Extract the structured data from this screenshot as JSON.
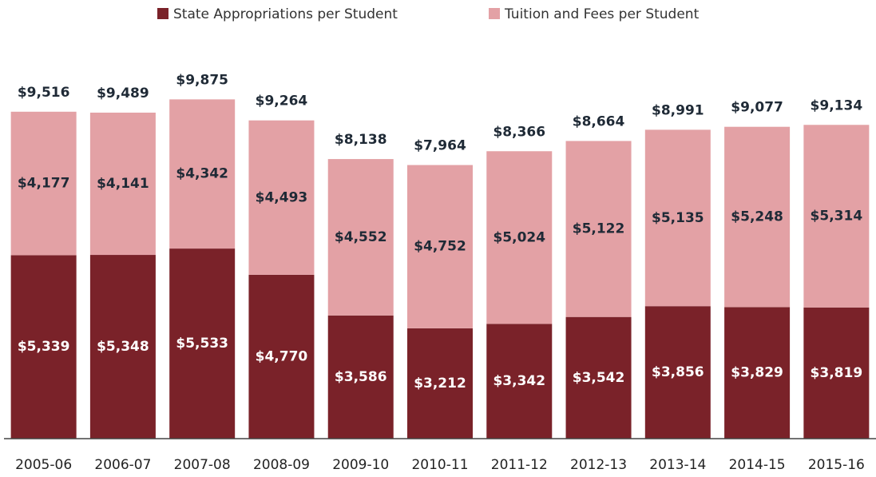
{
  "chart_data": {
    "type": "stacked_bar",
    "categories": [
      "2005-06",
      "2006-07",
      "2007-08",
      "2008-09",
      "2009-10",
      "2010-11",
      "2011-12",
      "2012-13",
      "2013-14",
      "2014-15",
      "2015-16"
    ],
    "series": [
      {
        "name": "State Appropriations per Student",
        "color": "#7a2229",
        "values": [
          5339,
          5348,
          5533,
          4770,
          3586,
          3212,
          3342,
          3542,
          3856,
          3829,
          3819
        ],
        "value_labels": [
          "$5,339",
          "$5,348",
          "$5,533",
          "$4,770",
          "$3,586",
          "$3,212",
          "$3,342",
          "$3,542",
          "$3,856",
          "$3,829",
          "$3,819"
        ]
      },
      {
        "name": "Tuition and Fees per Student",
        "color": "#e3a1a5",
        "values": [
          4177,
          4141,
          4342,
          4493,
          4552,
          4752,
          5024,
          5122,
          5135,
          5248,
          5314
        ],
        "value_labels": [
          "$4,177",
          "$4,141",
          "$4,342",
          "$4,493",
          "$4,552",
          "$4,752",
          "$5,024",
          "$5,122",
          "$5,135",
          "$5,248",
          "$5,314"
        ]
      }
    ],
    "total_labels": [
      "$9,516",
      "$9,489",
      "$9,875",
      "$9,264",
      "$8,138",
      "$7,964",
      "$8,366",
      "$8,664",
      "$8,991",
      "$9,077",
      "$9,134"
    ],
    "ylim": [
      0,
      10000
    ],
    "legend": "top"
  }
}
